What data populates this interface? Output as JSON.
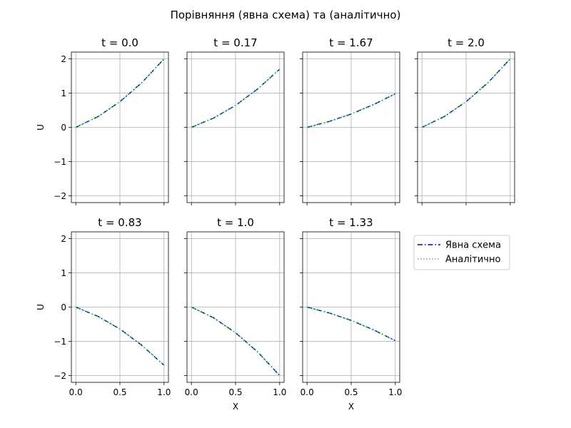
{
  "figure": {
    "suptitle": "Порівняння (явна схема) та (аналітично)"
  },
  "colors": {
    "numeric": "#0000cc",
    "analytic": "#22dd22",
    "grid": "#b0b0b0",
    "axis": "#000000"
  },
  "legend": {
    "placement": "right of bottom row",
    "entries": [
      {
        "label": "Явна схема",
        "style": "dash-dot",
        "color": "#0000cc"
      },
      {
        "label": "Аналітично",
        "style": "dotted",
        "color": "#22dd22"
      }
    ]
  },
  "chart_data": [
    {
      "type": "line",
      "title": "t = 0.0",
      "xlabel": "",
      "ylabel": "U",
      "xlim": [
        -0.05,
        1.05
      ],
      "ylim": [
        -2.2,
        2.2
      ],
      "grid": true,
      "x": [
        0.0,
        0.25,
        0.5,
        0.75,
        1.0
      ],
      "series": [
        {
          "name": "Явна схема",
          "values": [
            0.0,
            0.31,
            0.75,
            1.31,
            2.0
          ]
        },
        {
          "name": "Аналітично",
          "values": [
            0.0,
            0.31,
            0.75,
            1.31,
            2.0
          ]
        }
      ]
    },
    {
      "type": "line",
      "title": "t = 0.17",
      "xlabel": "",
      "ylabel": "",
      "xlim": [
        -0.05,
        1.05
      ],
      "ylim": [
        -2.2,
        2.2
      ],
      "grid": true,
      "x": [
        0.0,
        0.25,
        0.5,
        0.75,
        1.0
      ],
      "series": [
        {
          "name": "Явна схема",
          "values": [
            0.0,
            0.27,
            0.64,
            1.12,
            1.7
          ]
        },
        {
          "name": "Аналітично",
          "values": [
            0.0,
            0.27,
            0.64,
            1.12,
            1.7
          ]
        }
      ]
    },
    {
      "type": "line",
      "title": "t = 1.67",
      "xlabel": "",
      "ylabel": "",
      "xlim": [
        -0.05,
        1.05
      ],
      "ylim": [
        -2.2,
        2.2
      ],
      "grid": true,
      "x": [
        0.0,
        0.25,
        0.5,
        0.75,
        1.0
      ],
      "series": [
        {
          "name": "Явна схема",
          "values": [
            0.0,
            0.17,
            0.39,
            0.66,
            0.98
          ]
        },
        {
          "name": "Аналітично",
          "values": [
            0.0,
            0.17,
            0.39,
            0.66,
            0.98
          ]
        }
      ]
    },
    {
      "type": "line",
      "title": "t = 2.0",
      "xlabel": "",
      "ylabel": "",
      "xlim": [
        -0.05,
        1.05
      ],
      "ylim": [
        -2.2,
        2.2
      ],
      "grid": true,
      "x": [
        0.0,
        0.25,
        0.5,
        0.75,
        1.0
      ],
      "series": [
        {
          "name": "Явна схема",
          "values": [
            0.0,
            0.31,
            0.75,
            1.31,
            2.0
          ]
        },
        {
          "name": "Аналітично",
          "values": [
            0.0,
            0.31,
            0.75,
            1.31,
            2.0
          ]
        }
      ]
    },
    {
      "type": "line",
      "title": "t = 0.83",
      "xlabel": "",
      "ylabel": "U",
      "xlim": [
        -0.05,
        1.05
      ],
      "ylim": [
        -2.2,
        2.2
      ],
      "grid": true,
      "x": [
        0.0,
        0.25,
        0.5,
        0.75,
        1.0
      ],
      "series": [
        {
          "name": "Явна схема",
          "values": [
            0.0,
            -0.27,
            -0.64,
            -1.12,
            -1.7
          ]
        },
        {
          "name": "Аналітично",
          "values": [
            0.0,
            -0.27,
            -0.64,
            -1.12,
            -1.7
          ]
        }
      ]
    },
    {
      "type": "line",
      "title": "t = 1.0",
      "xlabel": "X",
      "ylabel": "",
      "xlim": [
        -0.05,
        1.05
      ],
      "ylim": [
        -2.2,
        2.2
      ],
      "grid": true,
      "x": [
        0.0,
        0.25,
        0.5,
        0.75,
        1.0
      ],
      "series": [
        {
          "name": "Явна схема",
          "values": [
            0.0,
            -0.31,
            -0.75,
            -1.31,
            -2.0
          ]
        },
        {
          "name": "Аналітично",
          "values": [
            0.0,
            -0.31,
            -0.75,
            -1.31,
            -2.0
          ]
        }
      ]
    },
    {
      "type": "line",
      "title": "t = 1.33",
      "xlabel": "X",
      "ylabel": "",
      "xlim": [
        -0.05,
        1.05
      ],
      "ylim": [
        -2.2,
        2.2
      ],
      "grid": true,
      "x": [
        0.0,
        0.25,
        0.5,
        0.75,
        1.0
      ],
      "series": [
        {
          "name": "Явна схема",
          "values": [
            0.0,
            -0.17,
            -0.39,
            -0.66,
            -0.98
          ]
        },
        {
          "name": "Аналітично",
          "values": [
            0.0,
            -0.17,
            -0.39,
            -0.66,
            -0.98
          ]
        }
      ]
    }
  ],
  "axes": {
    "x_ticks": [
      {
        "value": 0.0,
        "label": "0.0"
      },
      {
        "value": 0.5,
        "label": "0.5"
      },
      {
        "value": 1.0,
        "label": "1.0"
      }
    ],
    "y_ticks": [
      {
        "value": 2,
        "label": "2"
      },
      {
        "value": 1,
        "label": "1"
      },
      {
        "value": 0,
        "label": "0"
      },
      {
        "value": -1,
        "label": "−1"
      },
      {
        "value": -2,
        "label": "−2"
      }
    ]
  }
}
